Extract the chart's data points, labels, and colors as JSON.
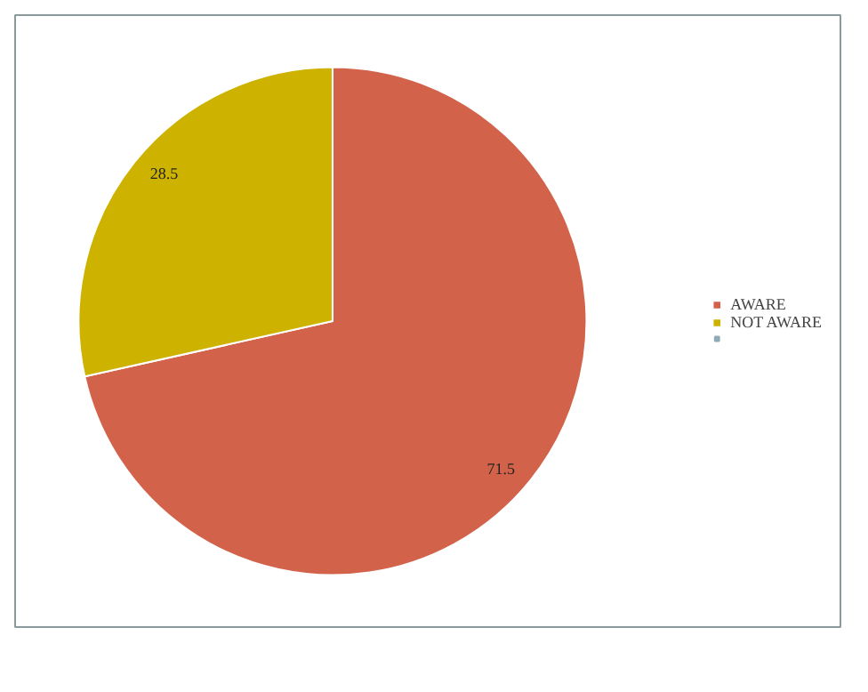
{
  "chart_data": {
    "type": "pie",
    "categories": [
      "AWARE",
      "NOT AWARE",
      null
    ],
    "values": [
      71.5,
      28.5,
      0
    ],
    "colors": [
      "#d2634a",
      "#cdb200",
      "#8fabb8"
    ],
    "value_labels": [
      "71.5",
      "28.5",
      null
    ],
    "legend": "right"
  }
}
